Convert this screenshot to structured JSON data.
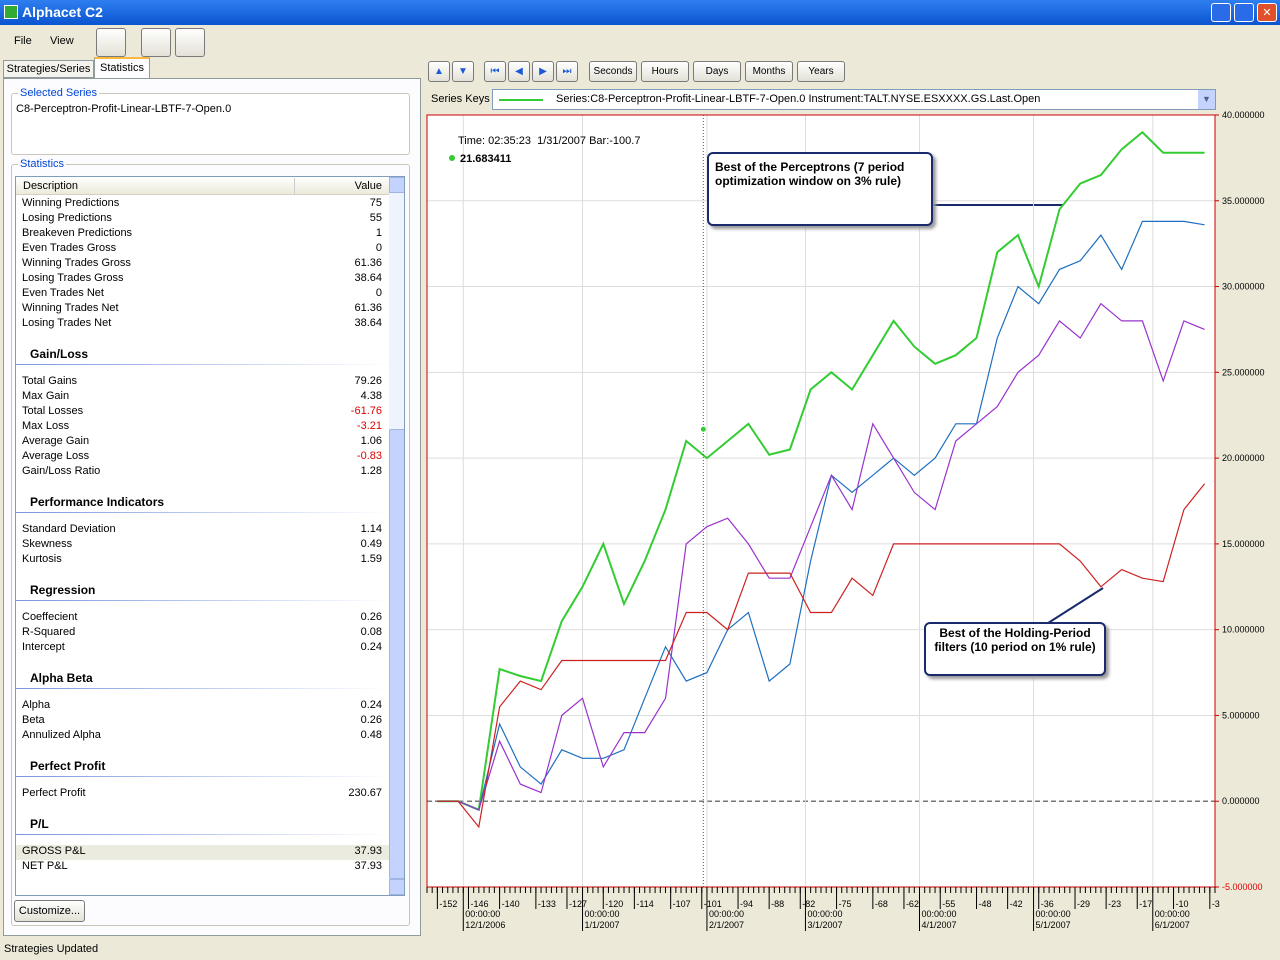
{
  "window": {
    "title": "Alphacet C2"
  },
  "menu": [
    "File",
    "View"
  ],
  "tabs": [
    "Strategies/Series",
    "Statistics"
  ],
  "selected_series": {
    "label": "Selected Series",
    "value": "C8-Perceptron-Profit-Linear-LBTF-7-Open.0"
  },
  "statistics": {
    "label": "Statistics",
    "columns": [
      "Description",
      "Value"
    ],
    "groups": [
      {
        "rows": [
          [
            "Winning Predictions",
            "75"
          ],
          [
            "Losing Predictions",
            "55"
          ],
          [
            "Breakeven Predictions",
            "1"
          ],
          [
            "Even Trades Gross",
            "0"
          ],
          [
            "Winning Trades Gross",
            "61.36"
          ],
          [
            "Losing Trades Gross",
            "38.64"
          ],
          [
            "Even Trades Net",
            "0"
          ],
          [
            "Winning Trades Net",
            "61.36"
          ],
          [
            "Losing Trades Net",
            "38.64"
          ]
        ]
      },
      {
        "name": "Gain/Loss",
        "rows": [
          [
            "Total Gains",
            "79.26"
          ],
          [
            "Max Gain",
            "4.38"
          ],
          [
            "Total Losses",
            "-61.76"
          ],
          [
            "Max Loss",
            "-3.21"
          ],
          [
            "Average Gain",
            "1.06"
          ],
          [
            "Average Loss",
            "-0.83"
          ],
          [
            "Gain/Loss Ratio",
            "1.28"
          ]
        ]
      },
      {
        "name": "Performance Indicators",
        "rows": [
          [
            "Standard Deviation",
            "1.14"
          ],
          [
            "Skewness",
            "0.49"
          ],
          [
            "Kurtosis",
            "1.59"
          ]
        ]
      },
      {
        "name": "Regression",
        "rows": [
          [
            "Coeffecient",
            "0.26"
          ],
          [
            "R-Squared",
            "0.08"
          ],
          [
            "Intercept",
            "0.24"
          ]
        ]
      },
      {
        "name": "Alpha Beta",
        "rows": [
          [
            "Alpha",
            "0.24"
          ],
          [
            "Beta",
            "0.26"
          ],
          [
            "Annulized Alpha",
            "0.48"
          ]
        ]
      },
      {
        "name": "Perfect Profit",
        "rows": [
          [
            "Perfect Profit",
            "230.67"
          ]
        ]
      },
      {
        "name": "P/L",
        "rows": [
          [
            "GROSS P&L",
            "37.93"
          ],
          [
            "NET P&L",
            "37.93"
          ]
        ]
      }
    ]
  },
  "customize_button": "Customize...",
  "toolbar": {
    "buttons": [
      "Seconds",
      "Hours",
      "Days",
      "Months",
      "Years"
    ]
  },
  "series_keys": {
    "label": "Series Keys",
    "value": "Series:C8-Perceptron-Profit-Linear-LBTF-7-Open.0  Instrument:TALT.NYSE.ESXXXX.GS.Last.Open"
  },
  "chart_data": {
    "type": "line",
    "x": [
      -152,
      -148,
      -144,
      -140,
      -136,
      -132,
      -128,
      -124,
      -120,
      -116,
      -112,
      -108,
      -104,
      -100,
      -96,
      -92,
      -88,
      -84,
      -80,
      -76,
      -72,
      -68,
      -64,
      -60,
      -56,
      -52,
      -48,
      -44,
      -40,
      -36,
      -32,
      -28,
      -24,
      -20,
      -16,
      -12,
      -8,
      -4
    ],
    "series": [
      {
        "color": "#33cc33",
        "values": [
          0,
          0,
          -0.5,
          7.7,
          7.3,
          7,
          10.5,
          12.5,
          15,
          11.5,
          14,
          17,
          21,
          20,
          21,
          22,
          20.2,
          20.5,
          24,
          25,
          24,
          26,
          28,
          26.5,
          25.5,
          26,
          27,
          32,
          33,
          30,
          34.5,
          36,
          36.5,
          38,
          39,
          37.8,
          37.8,
          37.8
        ]
      },
      {
        "color": "#1f6fc0",
        "values": [
          0,
          0,
          -0.5,
          4.5,
          2,
          1,
          3,
          2.5,
          2.5,
          3,
          6,
          9,
          7,
          7.5,
          10,
          11,
          7,
          8,
          14,
          19,
          18,
          19,
          20,
          19,
          20,
          22,
          22,
          27,
          30,
          29,
          31,
          31.5,
          33,
          31,
          33.8,
          33.8,
          33.8,
          33.6
        ]
      },
      {
        "color": "#9933cc",
        "values": [
          0,
          0,
          -0.5,
          3.5,
          1,
          0.5,
          5,
          6,
          2,
          4,
          4,
          6,
          15,
          16,
          16.5,
          15,
          13,
          13,
          16,
          19,
          17,
          22,
          20,
          18,
          17,
          21,
          22,
          23,
          25,
          26,
          28,
          27,
          29,
          28,
          28,
          24.5,
          28,
          27.5
        ]
      },
      {
        "color": "#cc2222",
        "values": [
          0,
          0,
          -1.5,
          5.5,
          7,
          6.5,
          8.2,
          8.2,
          8.2,
          8.2,
          8.2,
          8.2,
          11,
          11,
          10,
          13.3,
          13.3,
          13.3,
          11,
          11,
          13,
          12,
          15,
          15,
          15,
          15,
          15,
          15,
          15,
          15,
          15,
          14,
          12.5,
          13.5,
          13,
          12.8,
          17,
          18.5
        ]
      }
    ],
    "xlim": [
      -154,
      -2
    ],
    "xticks": [
      -152,
      -146,
      -140,
      -133,
      -127,
      -120,
      -114,
      -107,
      -101,
      -94,
      -88,
      -82,
      -75,
      -68,
      -62,
      -55,
      -48,
      -42,
      -36,
      -29,
      -23,
      -17,
      -10,
      -3
    ],
    "date_ticks": [
      {
        "value": -147,
        "label": "12/1/2006"
      },
      {
        "value": -124,
        "label": "1/1/2007"
      },
      {
        "value": -100,
        "label": "2/1/2007"
      },
      {
        "value": -81,
        "label": "3/1/2007"
      },
      {
        "value": -59,
        "label": "4/1/2007"
      },
      {
        "value": -37,
        "label": "5/1/2007"
      },
      {
        "value": -14,
        "label": "6/1/2007"
      }
    ],
    "date_tick_time": "00:00:00",
    "ylim": [
      -5,
      40
    ],
    "yticks": [
      {
        "value": 40,
        "label": "40.000000"
      },
      {
        "value": 35,
        "label": "35.000000"
      },
      {
        "value": 30,
        "label": "30.000000"
      },
      {
        "value": 25,
        "label": "25.000000"
      },
      {
        "value": 20,
        "label": "20.000000"
      },
      {
        "value": 15,
        "label": "15.000000"
      },
      {
        "value": 10,
        "label": "10.000000"
      },
      {
        "value": 5,
        "label": "5.000000"
      },
      {
        "value": 0,
        "label": "0.000000"
      },
      {
        "value": -5,
        "label": "-5.000000"
      }
    ],
    "grid": true,
    "cursor": {
      "x": -100.7,
      "label": "Time: 02:35:23  1/31/2007 Bar:-100.7",
      "value": 21.683411,
      "color": "#33cc33"
    },
    "annotations": [
      "Best of the Perceptrons (7 period optimization window on 3% rule)",
      "Best of the Holding-Period filters (10 period on 1% rule)"
    ]
  },
  "status": "Strategies Updated"
}
